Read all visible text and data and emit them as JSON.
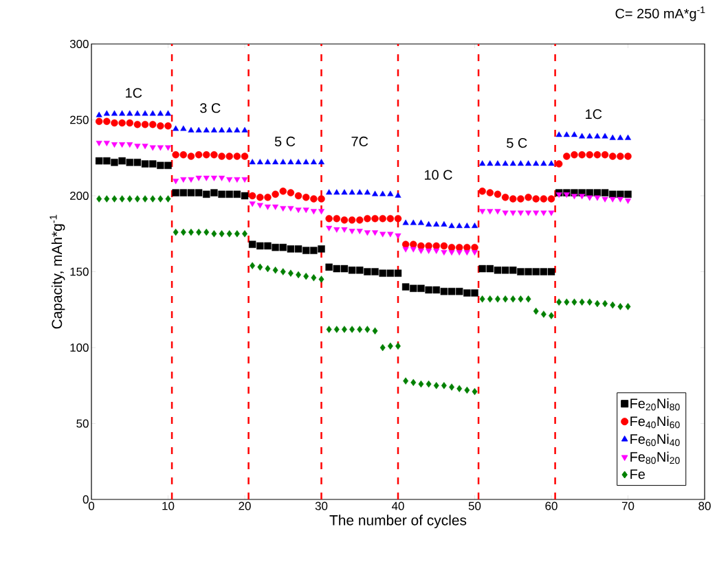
{
  "chart_data": {
    "type": "scatter",
    "xlabel": "The number of cycles",
    "ylabel": "Capacity, mAh*g$^{-1}$",
    "xlim": [
      0,
      80
    ],
    "ylim": [
      0,
      300
    ],
    "xticks": [
      0,
      10,
      20,
      30,
      40,
      50,
      60,
      70,
      80
    ],
    "yticks": [
      0,
      50,
      100,
      150,
      200,
      250,
      300
    ],
    "legend": "bottom right",
    "grid": false,
    "x": [
      1,
      2,
      3,
      4,
      5,
      6,
      7,
      8,
      9,
      10,
      11,
      12,
      13,
      14,
      15,
      16,
      17,
      18,
      19,
      20,
      21,
      22,
      23,
      24,
      25,
      26,
      27,
      28,
      29,
      30,
      31,
      32,
      33,
      34,
      35,
      36,
      37,
      38,
      39,
      40,
      41,
      42,
      43,
      44,
      45,
      46,
      47,
      48,
      49,
      50,
      51,
      52,
      53,
      54,
      55,
      56,
      57,
      58,
      59,
      60,
      61,
      62,
      63,
      64,
      65,
      66,
      67,
      68,
      69,
      70
    ],
    "series": [
      {
        "name": "Fe$_{20}$Ni$_{80}$",
        "color": "#000000",
        "marker": "square",
        "values": [
          223,
          223,
          222,
          223,
          222,
          222,
          221,
          221,
          220,
          220,
          202,
          202,
          202,
          202,
          201,
          202,
          201,
          201,
          201,
          200,
          168,
          167,
          167,
          166,
          166,
          165,
          165,
          164,
          164,
          165,
          153,
          152,
          152,
          151,
          151,
          150,
          150,
          149,
          149,
          149,
          140,
          139,
          139,
          138,
          138,
          137,
          137,
          137,
          136,
          136,
          152,
          152,
          151,
          151,
          151,
          150,
          150,
          150,
          150,
          150,
          202,
          202,
          202,
          202,
          202,
          202,
          202,
          201,
          201,
          201
        ]
      },
      {
        "name": "Fe$_{40}$Ni$_{60}$",
        "color": "#ff0000",
        "marker": "circle",
        "values": [
          249,
          249,
          248,
          248,
          248,
          247,
          247,
          247,
          246,
          246,
          227,
          227,
          226,
          227,
          227,
          227,
          226,
          226,
          226,
          226,
          200,
          199,
          199,
          201,
          203,
          202,
          200,
          199,
          198,
          198,
          185,
          185,
          184,
          184,
          184,
          185,
          185,
          185,
          185,
          185,
          168,
          168,
          167,
          167,
          167,
          167,
          166,
          166,
          166,
          166,
          203,
          202,
          201,
          199,
          198,
          198,
          199,
          198,
          198,
          198,
          221,
          226,
          227,
          227,
          227,
          227,
          227,
          226,
          226,
          226
        ]
      },
      {
        "name": "Fe$_{60}$Ni$_{40}$",
        "color": "#0000ff",
        "marker": "triangle",
        "values": [
          253,
          254,
          254,
          254,
          254,
          254,
          254,
          254,
          254,
          254,
          244,
          244,
          243,
          243,
          243,
          243,
          243,
          243,
          243,
          243,
          222,
          222,
          222,
          222,
          222,
          222,
          222,
          222,
          222,
          222,
          202,
          202,
          202,
          202,
          202,
          202,
          201,
          201,
          201,
          200,
          182,
          182,
          182,
          181,
          181,
          181,
          180,
          180,
          180,
          180,
          221,
          221,
          221,
          221,
          221,
          221,
          221,
          221,
          221,
          221,
          240,
          240,
          240,
          239,
          239,
          239,
          239,
          238,
          238,
          238
        ]
      },
      {
        "name": "Fe$_{80}$Ni$_{20}$",
        "color": "#ff00ff",
        "marker": "triangle_down",
        "values": [
          235,
          235,
          234,
          234,
          234,
          233,
          233,
          232,
          232,
          232,
          210,
          211,
          211,
          212,
          212,
          212,
          212,
          211,
          211,
          211,
          195,
          194,
          193,
          193,
          192,
          192,
          191,
          191,
          190,
          190,
          179,
          178,
          178,
          177,
          177,
          176,
          176,
          175,
          175,
          174,
          165,
          165,
          164,
          164,
          164,
          163,
          163,
          163,
          163,
          163,
          190,
          190,
          190,
          189,
          189,
          189,
          189,
          189,
          189,
          189,
          201,
          201,
          200,
          200,
          199,
          199,
          198,
          198,
          198,
          197
        ]
      },
      {
        "name": "Fe",
        "color": "#008000",
        "marker": "diamond",
        "values": [
          198,
          198,
          198,
          198,
          198,
          198,
          198,
          198,
          198,
          198,
          176,
          176,
          176,
          176,
          176,
          175,
          175,
          175,
          175,
          175,
          154,
          153,
          152,
          151,
          150,
          149,
          148,
          147,
          146,
          145,
          112,
          112,
          112,
          112,
          112,
          112,
          111,
          100,
          101,
          101,
          78,
          77,
          76,
          76,
          75,
          75,
          74,
          73,
          72,
          71,
          132,
          132,
          132,
          132,
          132,
          132,
          132,
          124,
          122,
          121,
          130,
          130,
          130,
          130,
          130,
          129,
          129,
          128,
          127,
          127
        ]
      }
    ],
    "ref_lines": [
      {
        "axis": "x",
        "value": 10.5,
        "color": "#ff0000",
        "line_style": "dashed"
      },
      {
        "axis": "x",
        "value": 20.5,
        "color": "#ff0000",
        "line_style": "dashed"
      },
      {
        "axis": "x",
        "value": 30,
        "color": "#ff0000",
        "line_style": "dashed"
      },
      {
        "axis": "x",
        "value": 40,
        "color": "#ff0000",
        "line_style": "dashed"
      },
      {
        "axis": "x",
        "value": 50.5,
        "color": "#ff0000",
        "line_style": "dashed"
      },
      {
        "axis": "x",
        "value": 60.5,
        "color": "#ff0000",
        "line_style": "dashed"
      }
    ],
    "annotations": [
      "1C",
      "3 C",
      "5 C",
      "7C",
      "10 C",
      "5 C",
      "1C",
      "C= 250 mA*g$^{-1}$"
    ]
  }
}
